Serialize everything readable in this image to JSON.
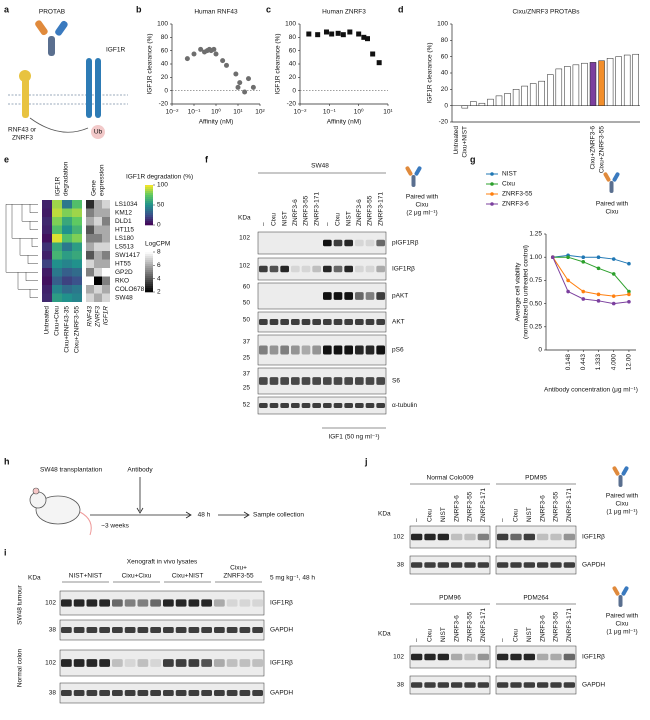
{
  "panel_letters": [
    "a",
    "b",
    "c",
    "d",
    "e",
    "f",
    "g",
    "h",
    "i",
    "j"
  ],
  "panel_a": {
    "protab": "PROTAB",
    "receptor": "IGF1R",
    "ligase": [
      "RNF43 or",
      "ZNRF3"
    ],
    "ub": "Ub"
  },
  "chart_data": [
    {
      "type": "scatter",
      "title": "Human RNF43",
      "xlabel": "Affinity (nM)",
      "ylabel": "IGF1R clearance (%)",
      "xscale": "log",
      "xlim": [
        0.01,
        100
      ],
      "xticks": [
        {
          "value": 0.01,
          "label": "10⁻²"
        },
        {
          "value": 0.1,
          "label": "10⁻¹"
        },
        {
          "value": 1,
          "label": "10⁰"
        },
        {
          "value": 10,
          "label": "10¹"
        },
        {
          "value": 100,
          "label": "10²"
        }
      ],
      "ylim": [
        -20,
        100
      ],
      "yticks": [
        -20,
        0,
        20,
        40,
        60,
        80,
        100
      ],
      "hline": 0,
      "marker": "circle",
      "color": "#6e6e6e",
      "x": [
        0.05,
        0.1,
        0.2,
        0.3,
        0.4,
        0.5,
        0.6,
        0.8,
        1,
        2,
        3,
        8,
        10,
        12,
        20,
        30,
        50
      ],
      "values": [
        48,
        55,
        62,
        58,
        60,
        62,
        60,
        62,
        55,
        45,
        38,
        25,
        5,
        12,
        -2,
        18,
        5
      ]
    },
    {
      "type": "scatter",
      "title": "Human ZNRF3",
      "xlabel": "Affinity (nM)",
      "ylabel": "IGF1R clearance (%)",
      "xscale": "log",
      "xlim": [
        0.01,
        10
      ],
      "xticks": [
        {
          "value": 0.01,
          "label": "10⁻²"
        },
        {
          "value": 0.1,
          "label": "10⁻¹"
        },
        {
          "value": 1,
          "label": "10⁰"
        },
        {
          "value": 10,
          "label": "10¹"
        }
      ],
      "ylim": [
        -20,
        100
      ],
      "yticks": [
        -20,
        0,
        20,
        40,
        60,
        80,
        100
      ],
      "hline": 0,
      "marker": "square",
      "color": "#111111",
      "x": [
        0.02,
        0.04,
        0.08,
        0.12,
        0.2,
        0.3,
        0.5,
        1,
        1.5,
        2,
        3,
        5
      ],
      "values": [
        85,
        84,
        88,
        85,
        86,
        84,
        88,
        85,
        80,
        78,
        55,
        42
      ]
    },
    {
      "type": "bar",
      "title": "Cixu/ZNRF3 PROTABs",
      "ylabel": "IGF1R clearance (%)",
      "ylim": [
        -20,
        100
      ],
      "yticks": [
        -20,
        0,
        20,
        40,
        60,
        80,
        100
      ],
      "categories": [
        "Untreated",
        "Cixu+NIST",
        null,
        null,
        null,
        null,
        null,
        null,
        null,
        null,
        null,
        null,
        null,
        null,
        null,
        null,
        "Cixu+ZNRF3-6",
        "Cixu+ZNRF3-55",
        null,
        null,
        null,
        null
      ],
      "values": [
        0,
        -3,
        5,
        3,
        8,
        12,
        15,
        20,
        24,
        27,
        30,
        38,
        45,
        48,
        50,
        52,
        53,
        55,
        58,
        60,
        62,
        63
      ],
      "colors": [
        "#ffffff",
        "#ffffff",
        "#ffffff",
        "#ffffff",
        "#ffffff",
        "#ffffff",
        "#ffffff",
        "#ffffff",
        "#ffffff",
        "#ffffff",
        "#ffffff",
        "#ffffff",
        "#ffffff",
        "#ffffff",
        "#ffffff",
        "#ffffff",
        "#7b3f9e",
        "#f28e2b",
        "#ffffff",
        "#ffffff",
        "#ffffff",
        "#ffffff"
      ]
    },
    {
      "type": "line",
      "xlabel": "Antibody concentration (μg ml⁻¹)",
      "ylabel": [
        "Average cell viability",
        "(normalized to untreated control)"
      ],
      "xscale": "log",
      "xlim": [
        0.03,
        20
      ],
      "xticks": [
        0.148,
        0.443,
        1.333,
        {
          "value": 4,
          "label": "4.000"
        },
        {
          "value": 12,
          "label": "12.00"
        }
      ],
      "ylim": [
        0,
        1.25
      ],
      "yticks": [
        0,
        0.25,
        {
          "value": 0.5,
          "label": "0.50"
        },
        0.75,
        {
          "value": 1,
          "label": "1.00"
        },
        1.25
      ],
      "x": [
        0.049,
        0.148,
        0.443,
        1.333,
        4,
        12
      ],
      "note": [
        "Paired with",
        "Cixu"
      ],
      "series": [
        {
          "name": "NIST",
          "color": "#1f77b4",
          "values": [
            1.0,
            1.02,
            1.0,
            1.0,
            0.98,
            0.93
          ]
        },
        {
          "name": "Cixu",
          "color": "#2ca02c",
          "values": [
            1.0,
            1.0,
            0.95,
            0.88,
            0.82,
            0.63
          ]
        },
        {
          "name": "ZNRF3-55",
          "color": "#ff7f0e",
          "values": [
            1.0,
            0.75,
            0.63,
            0.6,
            0.58,
            0.6
          ]
        },
        {
          "name": "ZNRF3-6",
          "color": "#7b3f9e",
          "values": [
            1.0,
            0.63,
            0.55,
            0.53,
            0.5,
            0.52
          ]
        }
      ]
    },
    {
      "type": "heatmap",
      "rows": [
        "LS1034",
        "KM12",
        "DLD1",
        "HT115",
        "LS180",
        "LS513",
        "SW1417",
        "HT55",
        "GP2D",
        "RKO",
        "COLO678",
        "SW48"
      ],
      "blocks": [
        {
          "title": [
            "IGF1R",
            "degradation"
          ],
          "columns": [
            "Untreated",
            "Cixu+Cixu",
            "Cixu+RNF43-35",
            "Cixu+ZNRF3-55"
          ],
          "colormap": "viridis",
          "colorbar_title": "IGF1R degradation (%)",
          "clim": [
            0,
            100
          ],
          "cticks": [
            0,
            50,
            100
          ],
          "values": [
            [
              10,
              85,
              40,
              70
            ],
            [
              8,
              90,
              80,
              85
            ],
            [
              12,
              80,
              60,
              75
            ],
            [
              10,
              70,
              50,
              65
            ],
            [
              5,
              95,
              70,
              80
            ],
            [
              15,
              60,
              40,
              55
            ],
            [
              10,
              65,
              55,
              60
            ],
            [
              20,
              50,
              45,
              50
            ],
            [
              8,
              40,
              30,
              35
            ],
            [
              5,
              30,
              20,
              25
            ],
            [
              10,
              45,
              35,
              40
            ],
            [
              12,
              55,
              50,
              45
            ]
          ]
        },
        {
          "title": [
            "Gene",
            "expression"
          ],
          "columns": [
            "RNF43",
            "ZNRF3",
            "IGF1R"
          ],
          "colormap": "gray",
          "colorbar_title": "LogCPM",
          "clim": [
            2,
            8
          ],
          "cticks": [
            2,
            4,
            6,
            8
          ],
          "values": [
            [
              3,
              6,
              7
            ],
            [
              5,
              6,
              6
            ],
            [
              6,
              7,
              5
            ],
            [
              4,
              6,
              6
            ],
            [
              5,
              5,
              6
            ],
            [
              6,
              7,
              7
            ],
            [
              4,
              6,
              5
            ],
            [
              7,
              6,
              6
            ],
            [
              5,
              7,
              8
            ],
            [
              8,
              2,
              5
            ],
            [
              6,
              7,
              6
            ],
            [
              7,
              6,
              7
            ]
          ]
        }
      ]
    }
  ],
  "panel_f": {
    "cell_line": "SW48",
    "lanes": [
      "–",
      "Cixu",
      "NIST",
      "ZNRF3-6",
      "ZNRF3-55",
      "ZNRF3-171"
    ],
    "kda": "KDa",
    "markers": [
      102,
      102,
      60,
      50,
      50,
      37,
      25,
      37,
      25,
      52
    ],
    "proteins": [
      "pIGF1Rβ",
      "IGF1Rβ",
      "pAKT",
      "AKT",
      "pS6",
      "S6",
      "α-tubulin"
    ],
    "treatment": "IGF1 (50 ng ml⁻¹)",
    "note": [
      "Paired with",
      "Cixu",
      "(2 μg ml⁻¹)"
    ]
  },
  "panel_h": {
    "steps": [
      "SW48 transplantation",
      "Antibody",
      "~3 weeks",
      "48 h",
      "Sample collection"
    ]
  },
  "panel_i": {
    "header": "Xenograft in vivo lysates",
    "groups": [
      [
        "NIST+NIST"
      ],
      [
        "Cixu+Cixu"
      ],
      [
        "Cixu+NIST"
      ],
      [
        "Cixu+",
        "ZNRF3-55"
      ]
    ],
    "dose": "5 mg kg⁻¹, 48 h",
    "kda": "KDa",
    "tissues": [
      "SW48 tumour",
      "Normal colon"
    ],
    "markers": [
      102,
      38,
      102,
      38
    ],
    "proteins": [
      "IGF1Rβ",
      "GAPDH",
      "IGF1Rβ",
      "GAPDH"
    ]
  },
  "panel_j": {
    "samples": [
      [
        "Normal Colo009",
        "PDM95"
      ],
      [
        "PDM96",
        "PDM264"
      ]
    ],
    "lanes": [
      "–",
      "Cixu",
      "NIST",
      "ZNRF3-6",
      "ZNRF3-55",
      "ZNRF3-171"
    ],
    "note": [
      "Paired with",
      "Cixu",
      "(1 μg ml⁻¹)"
    ],
    "kda": "KDa",
    "markers": [
      102,
      38
    ],
    "proteins": [
      "IGF1Rβ",
      "GAPDH"
    ]
  }
}
